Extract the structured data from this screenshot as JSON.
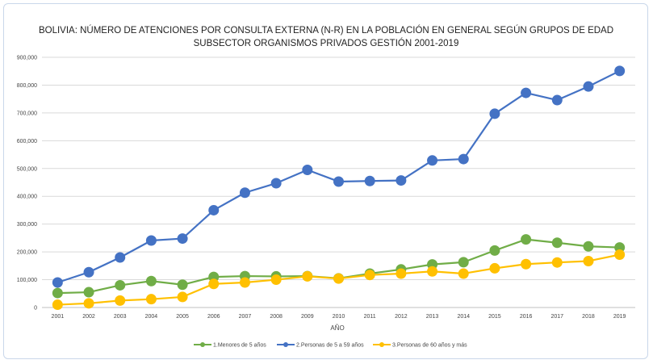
{
  "chart_data": {
    "type": "line",
    "title": "BOLIVIA: NÚMERO DE ATENCIONES POR CONSULTA EXTERNA (N-R) EN LA POBLACIÓN EN GENERAL SEGÚN GRUPOS DE EDAD",
    "subtitle": "SUBSECTOR ORGANISMOS PRIVADOS GESTIÓN 2001-2019",
    "xlabel": "AÑO",
    "ylabel": "",
    "ylim": [
      0,
      900000
    ],
    "yticks": [
      "0",
      "100,000",
      "200,000",
      "300,000",
      "400,000",
      "500,000",
      "600,000",
      "700,000",
      "800,000",
      "900,000"
    ],
    "ytick_values": [
      0,
      100000,
      200000,
      300000,
      400000,
      500000,
      600000,
      700000,
      800000,
      900000
    ],
    "grid": true,
    "legend_position": "bottom",
    "categories": [
      "2001",
      "2002",
      "2003",
      "2004",
      "2005",
      "2006",
      "2007",
      "2008",
      "2009",
      "2010",
      "2011",
      "2012",
      "2013",
      "2014",
      "2015",
      "2016",
      "2017",
      "2018",
      "2019"
    ],
    "series": [
      {
        "name": "1.Menores de 5 años",
        "color": "#70ad47",
        "values": [
          52000,
          55000,
          80000,
          95000,
          82000,
          110000,
          113000,
          112000,
          113000,
          105000,
          122000,
          137000,
          155000,
          163000,
          205000,
          245000,
          233000,
          220000,
          216000
        ]
      },
      {
        "name": "2.Personas de 5 a 59 años",
        "color": "#4472c4",
        "values": [
          90000,
          127000,
          180000,
          241000,
          248000,
          350000,
          413000,
          447000,
          495000,
          453000,
          455000,
          457000,
          529000,
          534000,
          697000,
          772000,
          746000,
          795000,
          851000
        ]
      },
      {
        "name": "3.Personas de 60 años y más",
        "color": "#ffc000",
        "values": [
          10000,
          15000,
          25000,
          30000,
          38000,
          85000,
          90000,
          100000,
          112000,
          104000,
          117000,
          122000,
          130000,
          122000,
          141000,
          156000,
          162000,
          167000,
          190000
        ]
      }
    ]
  }
}
